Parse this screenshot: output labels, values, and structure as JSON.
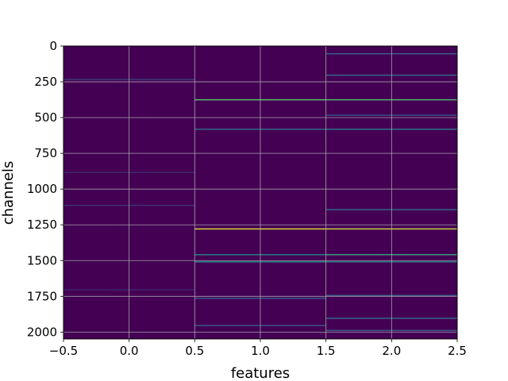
{
  "chart_data": {
    "type": "heatmap",
    "title": "",
    "xlabel": "features",
    "ylabel": "channels",
    "xlim": [
      -0.5,
      2.5
    ],
    "ylim": [
      2048,
      0
    ],
    "y_inverted": true,
    "grid": true,
    "colormap": "viridis",
    "x_ticks": [
      -0.5,
      0.0,
      0.5,
      1.0,
      1.5,
      2.0,
      2.5
    ],
    "x_tick_labels": [
      "−0.5",
      "0.0",
      "0.5",
      "1.0",
      "1.5",
      "2.0",
      "2.5"
    ],
    "y_ticks": [
      0,
      250,
      500,
      750,
      1000,
      1250,
      1500,
      1750,
      2000
    ],
    "y_tick_labels": [
      "0",
      "250",
      "500",
      "750",
      "1000",
      "1250",
      "1500",
      "1750",
      "2000"
    ],
    "columns": [
      0,
      1,
      2
    ],
    "n_channels": 2048,
    "base_value": 0.0,
    "highlighted_cells": [
      {
        "feature": 0,
        "channel": 230,
        "value": 0.18
      },
      {
        "feature": 0,
        "channel": 880,
        "value": 0.12
      },
      {
        "feature": 0,
        "channel": 1110,
        "value": 0.15
      },
      {
        "feature": 0,
        "channel": 1700,
        "value": 0.12
      },
      {
        "feature": 1,
        "channel": 372,
        "value": 0.72
      },
      {
        "feature": 1,
        "channel": 578,
        "value": 0.35
      },
      {
        "feature": 1,
        "channel": 1275,
        "value": 0.95
      },
      {
        "feature": 1,
        "channel": 1455,
        "value": 0.45
      },
      {
        "feature": 1,
        "channel": 1505,
        "value": 0.5
      },
      {
        "feature": 1,
        "channel": 1760,
        "value": 0.3
      },
      {
        "feature": 1,
        "channel": 1950,
        "value": 0.28
      },
      {
        "feature": 2,
        "channel": 50,
        "value": 0.3
      },
      {
        "feature": 2,
        "channel": 200,
        "value": 0.35
      },
      {
        "feature": 2,
        "channel": 372,
        "value": 0.68
      },
      {
        "feature": 2,
        "channel": 480,
        "value": 0.25
      },
      {
        "feature": 2,
        "channel": 578,
        "value": 0.4
      },
      {
        "feature": 2,
        "channel": 1140,
        "value": 0.35
      },
      {
        "feature": 2,
        "channel": 1275,
        "value": 0.92
      },
      {
        "feature": 2,
        "channel": 1455,
        "value": 0.6
      },
      {
        "feature": 2,
        "channel": 1505,
        "value": 0.45
      },
      {
        "feature": 2,
        "channel": 1740,
        "value": 0.3
      },
      {
        "feature": 2,
        "channel": 1900,
        "value": 0.35
      },
      {
        "feature": 2,
        "channel": 1985,
        "value": 0.3
      }
    ]
  }
}
